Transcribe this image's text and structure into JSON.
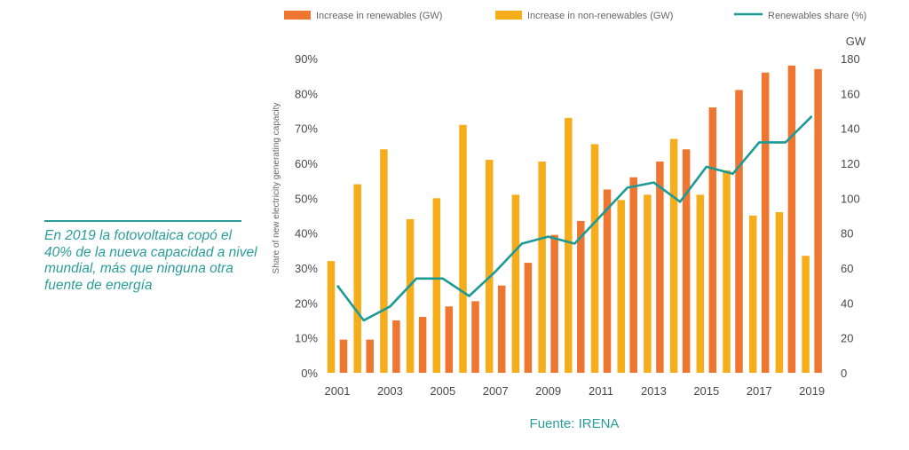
{
  "quote": {
    "text": "En 2019 la fotovoltaica copó el 40% de la nueva capacidad a nivel mundial, más que ninguna otra fuente de energía"
  },
  "colors": {
    "renewables": "#ee7630",
    "non_renewables": "#f6ad1c",
    "share_line": "#1b9a96",
    "quote": "#2a9d9b"
  },
  "chart_data": {
    "type": "bar",
    "title": "",
    "xlabel": "",
    "ylabel": "Share of new electricity generating capacity",
    "y2label": "GW",
    "source": "Fuente: IRENA",
    "x": [
      2001,
      2002,
      2003,
      2004,
      2005,
      2006,
      2007,
      2008,
      2009,
      2010,
      2011,
      2012,
      2013,
      2014,
      2015,
      2016,
      2017,
      2018,
      2019
    ],
    "x_tick_labels": [
      "2001",
      "2003",
      "2005",
      "2007",
      "2009",
      "2011",
      "2013",
      "2015",
      "2017",
      "2019"
    ],
    "y_left_ticks": [
      "0%",
      "10%",
      "20%",
      "30%",
      "40%",
      "50%",
      "60%",
      "70%",
      "80%",
      "90%"
    ],
    "y_right_ticks": [
      "0",
      "20",
      "40",
      "60",
      "80",
      "100",
      "120",
      "140",
      "160",
      "180"
    ],
    "ylim_left": [
      0,
      90
    ],
    "ylim_right": [
      0,
      180
    ],
    "series": [
      {
        "name": "Increase in renewables (GW)",
        "kind": "bar",
        "axis": "right",
        "values": [
          19,
          19,
          30,
          32,
          38,
          41,
          50,
          63,
          79,
          87,
          105,
          112,
          121,
          128,
          152,
          162,
          172,
          176,
          174
        ]
      },
      {
        "name": "Increase in non-renewables (GW)",
        "kind": "bar",
        "axis": "right",
        "values": [
          64,
          108,
          128,
          88,
          100,
          142,
          122,
          102,
          121,
          146,
          131,
          99,
          102,
          134,
          102,
          116,
          90,
          92,
          67
        ]
      },
      {
        "name": "Renewables share (%)",
        "kind": "line",
        "axis": "left",
        "values": [
          25,
          15,
          19,
          27,
          27,
          22,
          29,
          37,
          39,
          37,
          45,
          53,
          54.5,
          49,
          59,
          57,
          66,
          66,
          73.5
        ]
      }
    ]
  }
}
